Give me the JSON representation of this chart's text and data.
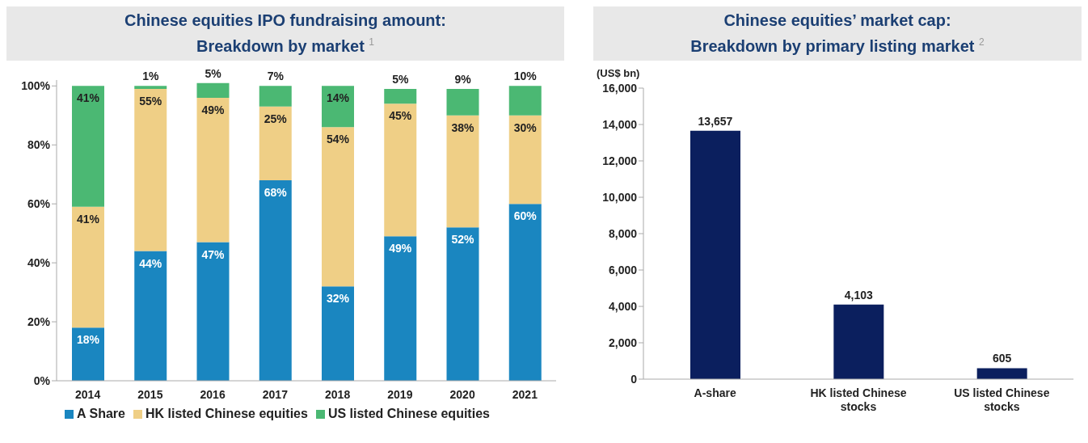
{
  "chart_data": [
    {
      "type": "bar",
      "title": "Chinese equities IPO fundraising amount:",
      "subtitle": "Breakdown by market $^{1}$",
      "categories": [
        "2014",
        "2015",
        "2016",
        "2017",
        "2018",
        "2019",
        "2020",
        "2021"
      ],
      "stacked": true,
      "series": [
        {
          "name": "A Share",
          "color": "#1a86c0",
          "values": [
            18,
            44,
            47,
            68,
            32,
            49,
            52,
            60
          ],
          "value_labels": [
            "18%",
            "44%",
            "47%",
            "68%",
            "32%",
            "49%",
            "52%",
            "60%"
          ]
        },
        {
          "name": "HK listed Chinese equities",
          "color": "#efcf86",
          "values": [
            41,
            55,
            49,
            25,
            54,
            45,
            38,
            30
          ],
          "value_labels": [
            "41%",
            "55%",
            "49%",
            "25%",
            "54%",
            "45%",
            "38%",
            "30%"
          ]
        },
        {
          "name": "US listed Chinese equities",
          "color": "#4bb873",
          "values": [
            41,
            1,
            5,
            7,
            14,
            5,
            9,
            10
          ],
          "value_labels": [
            "41%",
            "1%",
            "5%",
            "7%",
            "14%",
            "5%",
            "9%",
            "10%"
          ]
        }
      ],
      "ylim": [
        0,
        102
      ],
      "yticks": [
        {
          "value": 0,
          "label": "0%"
        },
        {
          "value": 20,
          "label": "20%"
        },
        {
          "value": 40,
          "label": "40%"
        },
        {
          "value": 60,
          "label": "60%"
        },
        {
          "value": 80,
          "label": "80%"
        },
        {
          "value": 100,
          "label": "100%"
        }
      ],
      "grid": false,
      "legend": "bottom"
    },
    {
      "type": "bar",
      "title": "Chinese equities’ market cap:",
      "subtitle": "Breakdown by primary listing market $^{2}$",
      "ylabel": "(US$ bn)",
      "categories": [
        "A-share",
        "HK listed Chinese stocks",
        "US listed Chinese stocks"
      ],
      "values": [
        13657,
        4103,
        605
      ],
      "value_labels": [
        "13,657",
        "4,103",
        "605"
      ],
      "color": "#0b1f5e",
      "ylim": [
        0,
        16000
      ],
      "yticks": [
        {
          "value": 0,
          "label": "0"
        },
        {
          "value": 2000,
          "label": "2,000"
        },
        {
          "value": 4000,
          "label": "4,000"
        },
        {
          "value": 6000,
          "label": "6,000"
        },
        {
          "value": 8000,
          "label": "8,000"
        },
        {
          "value": 10000,
          "label": "10,000"
        },
        {
          "value": 12000,
          "label": "12,000"
        },
        {
          "value": 14000,
          "label": "14,000"
        },
        {
          "value": 16000,
          "label": "16,000"
        }
      ],
      "grid": false,
      "legend": false
    }
  ]
}
